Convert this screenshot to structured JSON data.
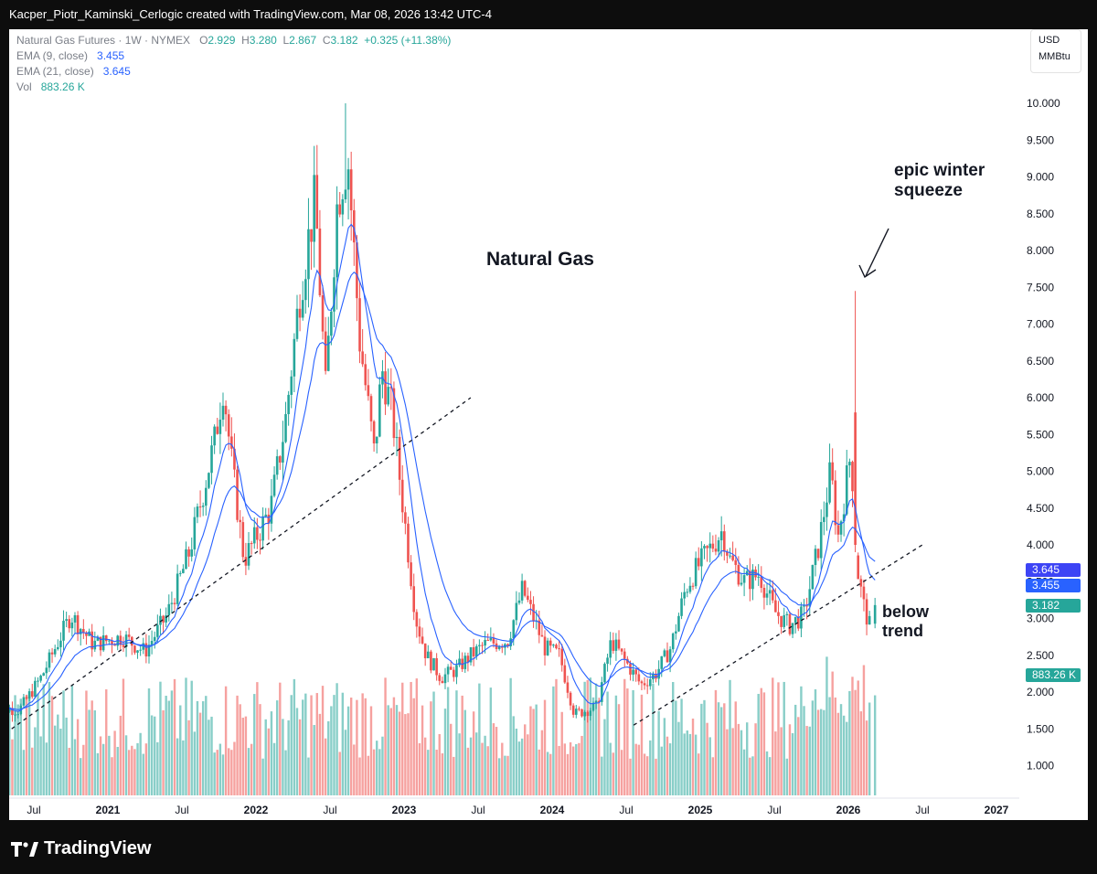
{
  "header": {
    "text": "Kacper_Piotr_Kaminski_Cerlogic created with TradingView.com, Mar 08, 2026 13:42 UTC-4"
  },
  "legend": {
    "symbol": "Natural Gas Futures · 1W · NYMEX",
    "o_label": "O",
    "o_value": "2.929",
    "h_label": "H",
    "h_value": "3.280",
    "l_label": "L",
    "l_value": "2.867",
    "c_label": "C",
    "c_value": "3.182",
    "change": "+0.325 (+11.38%)",
    "ema9_label": "EMA (9, close)",
    "ema9_value": "3.455",
    "ema21_label": "EMA (21, close)",
    "ema21_value": "3.645",
    "vol_label": "Vol",
    "vol_value": "883.26 K"
  },
  "units": {
    "currency": "USD",
    "unit": "MMBtu"
  },
  "annotations": {
    "title": "Natural Gas",
    "squeeze_line1": "epic winter",
    "squeeze_line2": "squeeze",
    "below_line1": "below",
    "below_line2": "trend"
  },
  "badges": {
    "ema21": "3.645",
    "ema9": "3.455",
    "close": "3.182",
    "volume": "883.26 K"
  },
  "colors": {
    "up": "#26a69a",
    "down": "#ef5350",
    "ema": "#2962ff",
    "axis_text": "#131722",
    "background_frame": "#0d0d0d"
  },
  "footer": {
    "brand": "TradingView"
  },
  "chart_data": {
    "type": "candlestick",
    "timeframe": "1W",
    "y_ticks": [
      "10.000",
      "9.500",
      "9.000",
      "8.500",
      "8.000",
      "7.500",
      "7.000",
      "6.500",
      "6.000",
      "5.500",
      "5.000",
      "4.500",
      "4.000",
      "3.500",
      "3.000",
      "2.500",
      "2.000",
      "1.500",
      "1.000"
    ],
    "x_ticks": [
      {
        "label": "Jul",
        "year": 2020.5
      },
      {
        "label": "2021",
        "year": 2021.0
      },
      {
        "label": "Jul",
        "year": 2021.5
      },
      {
        "label": "2022",
        "year": 2022.0
      },
      {
        "label": "Jul",
        "year": 2022.5
      },
      {
        "label": "2023",
        "year": 2023.0
      },
      {
        "label": "Jul",
        "year": 2023.5
      },
      {
        "label": "2024",
        "year": 2024.0
      },
      {
        "label": "Jul",
        "year": 2024.5
      },
      {
        "label": "2025",
        "year": 2025.0
      },
      {
        "label": "Jul",
        "year": 2025.5
      },
      {
        "label": "2026",
        "year": 2026.0
      },
      {
        "label": "Jul",
        "year": 2026.5
      },
      {
        "label": "2027",
        "year": 2027.0
      }
    ],
    "price_path": [
      [
        2020.25,
        1.8
      ],
      [
        2020.4,
        1.75
      ],
      [
        2020.55,
        2.2
      ],
      [
        2020.75,
        3.05
      ],
      [
        2020.9,
        2.65
      ],
      [
        2021.1,
        2.75
      ],
      [
        2021.25,
        2.55
      ],
      [
        2021.4,
        3.05
      ],
      [
        2021.55,
        3.9
      ],
      [
        2021.72,
        5.4
      ],
      [
        2021.78,
        6.2
      ],
      [
        2021.83,
        5.2
      ],
      [
        2021.92,
        3.8
      ],
      [
        2022.0,
        4.1
      ],
      [
        2022.1,
        4.5
      ],
      [
        2022.2,
        5.7
      ],
      [
        2022.3,
        7.5
      ],
      [
        2022.4,
        8.7
      ],
      [
        2022.47,
        6.1
      ],
      [
        2022.55,
        8.7
      ],
      [
        2022.62,
        9.3
      ],
      [
        2022.7,
        6.8
      ],
      [
        2022.8,
        5.2
      ],
      [
        2022.85,
        6.4
      ],
      [
        2022.92,
        5.8
      ],
      [
        2023.0,
        4.4
      ],
      [
        2023.08,
        3.0
      ],
      [
        2023.15,
        2.5
      ],
      [
        2023.25,
        2.2
      ],
      [
        2023.35,
        2.3
      ],
      [
        2023.45,
        2.5
      ],
      [
        2023.55,
        2.65
      ],
      [
        2023.7,
        2.7
      ],
      [
        2023.8,
        3.4
      ],
      [
        2023.95,
        2.6
      ],
      [
        2024.05,
        2.5
      ],
      [
        2024.15,
        1.7
      ],
      [
        2024.3,
        1.8
      ],
      [
        2024.4,
        2.7
      ],
      [
        2024.5,
        2.4
      ],
      [
        2024.6,
        2.1
      ],
      [
        2024.7,
        2.25
      ],
      [
        2024.8,
        2.6
      ],
      [
        2024.9,
        3.4
      ],
      [
        2024.95,
        3.6
      ],
      [
        2025.05,
        3.9
      ],
      [
        2025.15,
        4.2
      ],
      [
        2025.2,
        3.8
      ],
      [
        2025.3,
        3.5
      ],
      [
        2025.4,
        3.6
      ],
      [
        2025.5,
        3.1
      ],
      [
        2025.6,
        2.9
      ],
      [
        2025.7,
        3.05
      ],
      [
        2025.8,
        4.0
      ],
      [
        2025.88,
        5.0
      ],
      [
        2025.93,
        4.1
      ],
      [
        2026.02,
        5.3
      ],
      [
        2026.05,
        3.8
      ],
      [
        2026.1,
        3.2
      ],
      [
        2026.15,
        2.85
      ],
      [
        2026.18,
        3.182
      ]
    ],
    "ema9_last": 3.455,
    "ema21_last": 3.645,
    "last_candle": {
      "open": 2.929,
      "high": 3.28,
      "low": 2.867,
      "close": 3.182
    },
    "spike_high": 7.45,
    "all_time_high_in_view": 10.0,
    "trendlines": [
      {
        "from": [
          2020.35,
          1.5
        ],
        "to": [
          2023.45,
          6.0
        ]
      },
      {
        "from": [
          2024.55,
          1.55
        ],
        "to": [
          2026.5,
          4.0
        ]
      }
    ],
    "volume_last": "883.26 K"
  }
}
